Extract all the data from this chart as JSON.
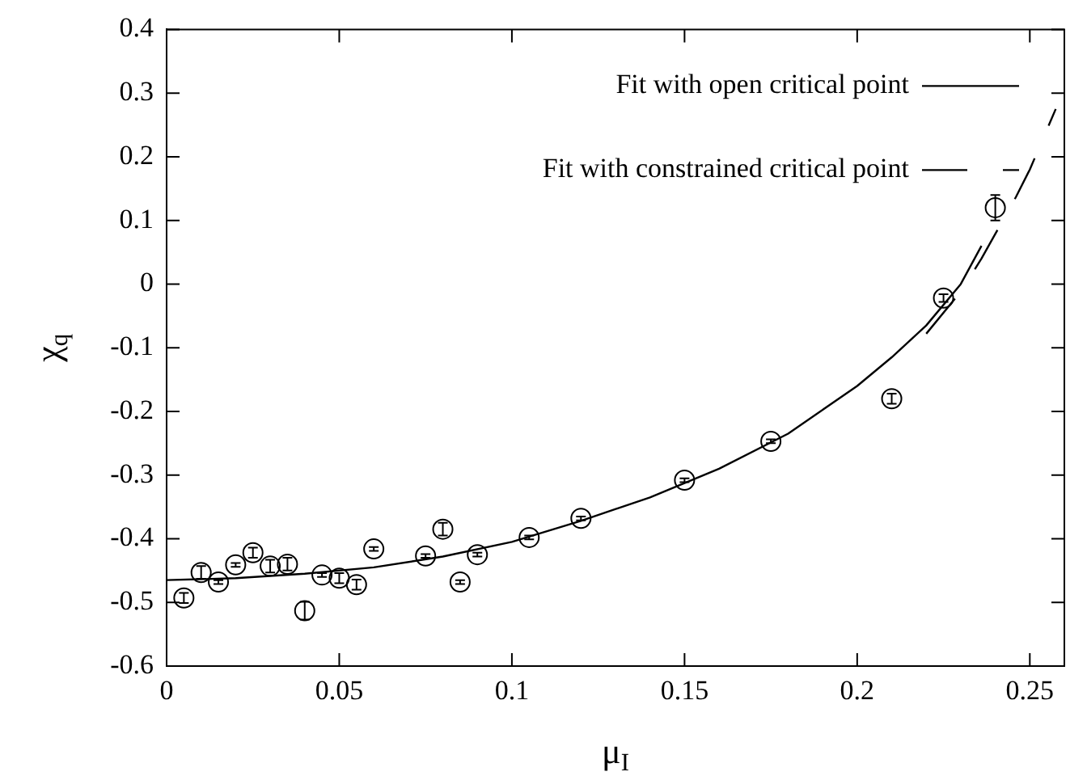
{
  "chart_data": {
    "type": "scatter",
    "xlabel": "μ$_{I}$",
    "ylabel": "χ$_{q}$",
    "xlim": [
      0,
      0.26
    ],
    "xticks": [
      0,
      0.05,
      0.1,
      0.15,
      0.2,
      0.25
    ],
    "ylim": [
      -0.6,
      0.4
    ],
    "yticks": [
      -0.6,
      -0.5,
      -0.4,
      -0.3,
      -0.2,
      -0.1,
      0,
      0.1,
      0.2,
      0.3,
      0.4
    ],
    "grid": false,
    "legend": "top right",
    "marker": "circle",
    "series": [
      {
        "color": "#000000",
        "x": [
          0.005,
          0.01,
          0.015,
          0.02,
          0.025,
          0.03,
          0.035,
          0.04,
          0.045,
          0.05,
          0.055,
          0.06,
          0.075,
          0.08,
          0.085,
          0.09,
          0.105,
          0.12,
          0.15,
          0.175,
          0.21,
          0.225,
          0.24
        ],
        "values": [
          -0.493,
          -0.453,
          -0.468,
          -0.441,
          -0.422,
          -0.443,
          -0.44,
          -0.513,
          -0.457,
          -0.462,
          -0.472,
          -0.416,
          -0.427,
          -0.385,
          -0.468,
          -0.425,
          -0.398,
          -0.368,
          -0.308,
          -0.247,
          -0.18,
          -0.022,
          0.12
        ],
        "errors": [
          0.008,
          0.01,
          0.003,
          0.003,
          0.008,
          0.01,
          0.01,
          0.014,
          0.003,
          0.008,
          0.008,
          0.003,
          0.003,
          0.01,
          0.003,
          0.003,
          0.003,
          0.003,
          0.003,
          0.003,
          0.008,
          0.006,
          0.02
        ]
      },
      {
        "type": "line",
        "name": "Fit with open critical point",
        "color": "#000000",
        "marker": "none",
        "line_style": "solid",
        "x": [
          0,
          0.02,
          0.04,
          0.06,
          0.08,
          0.1,
          0.12,
          0.14,
          0.16,
          0.18,
          0.2,
          0.21,
          0.22,
          0.23,
          0.236
        ],
        "values": [
          -0.465,
          -0.462,
          -0.455,
          -0.445,
          -0.428,
          -0.405,
          -0.372,
          -0.335,
          -0.29,
          -0.235,
          -0.16,
          -0.115,
          -0.065,
          0.0,
          0.06
        ]
      },
      {
        "type": "line",
        "name": "Fit with constrained critical point",
        "color": "#000000",
        "marker": "none",
        "line_style": "dashed",
        "x": [
          0.22,
          0.23,
          0.236,
          0.246,
          0.25,
          0.2575
        ],
        "values": [
          -0.078,
          -0.012,
          0.04,
          0.137,
          0.18,
          0.275
        ]
      }
    ]
  }
}
